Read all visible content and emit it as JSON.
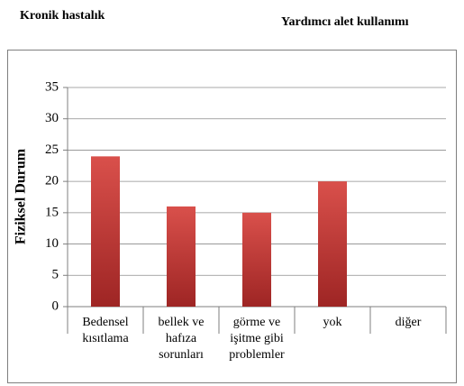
{
  "header": {
    "left": "Kronik hastalık",
    "right": "Yardımcı alet kullanımı"
  },
  "chart_data": {
    "type": "bar",
    "y_label": "Fiziksel Durum",
    "categories": [
      "Bedensel\nkısıtlama",
      "bellek ve\nhafıza\nsorunları",
      "görme ve\nişitme gibi\nproblemler",
      "yok",
      "diğer"
    ],
    "values": [
      24,
      16,
      15,
      20,
      0
    ],
    "color": "#c23b38",
    "ylim": [
      0,
      35
    ],
    "yticks": [
      0,
      5,
      10,
      15,
      20,
      25,
      30,
      35
    ],
    "grid": true
  }
}
